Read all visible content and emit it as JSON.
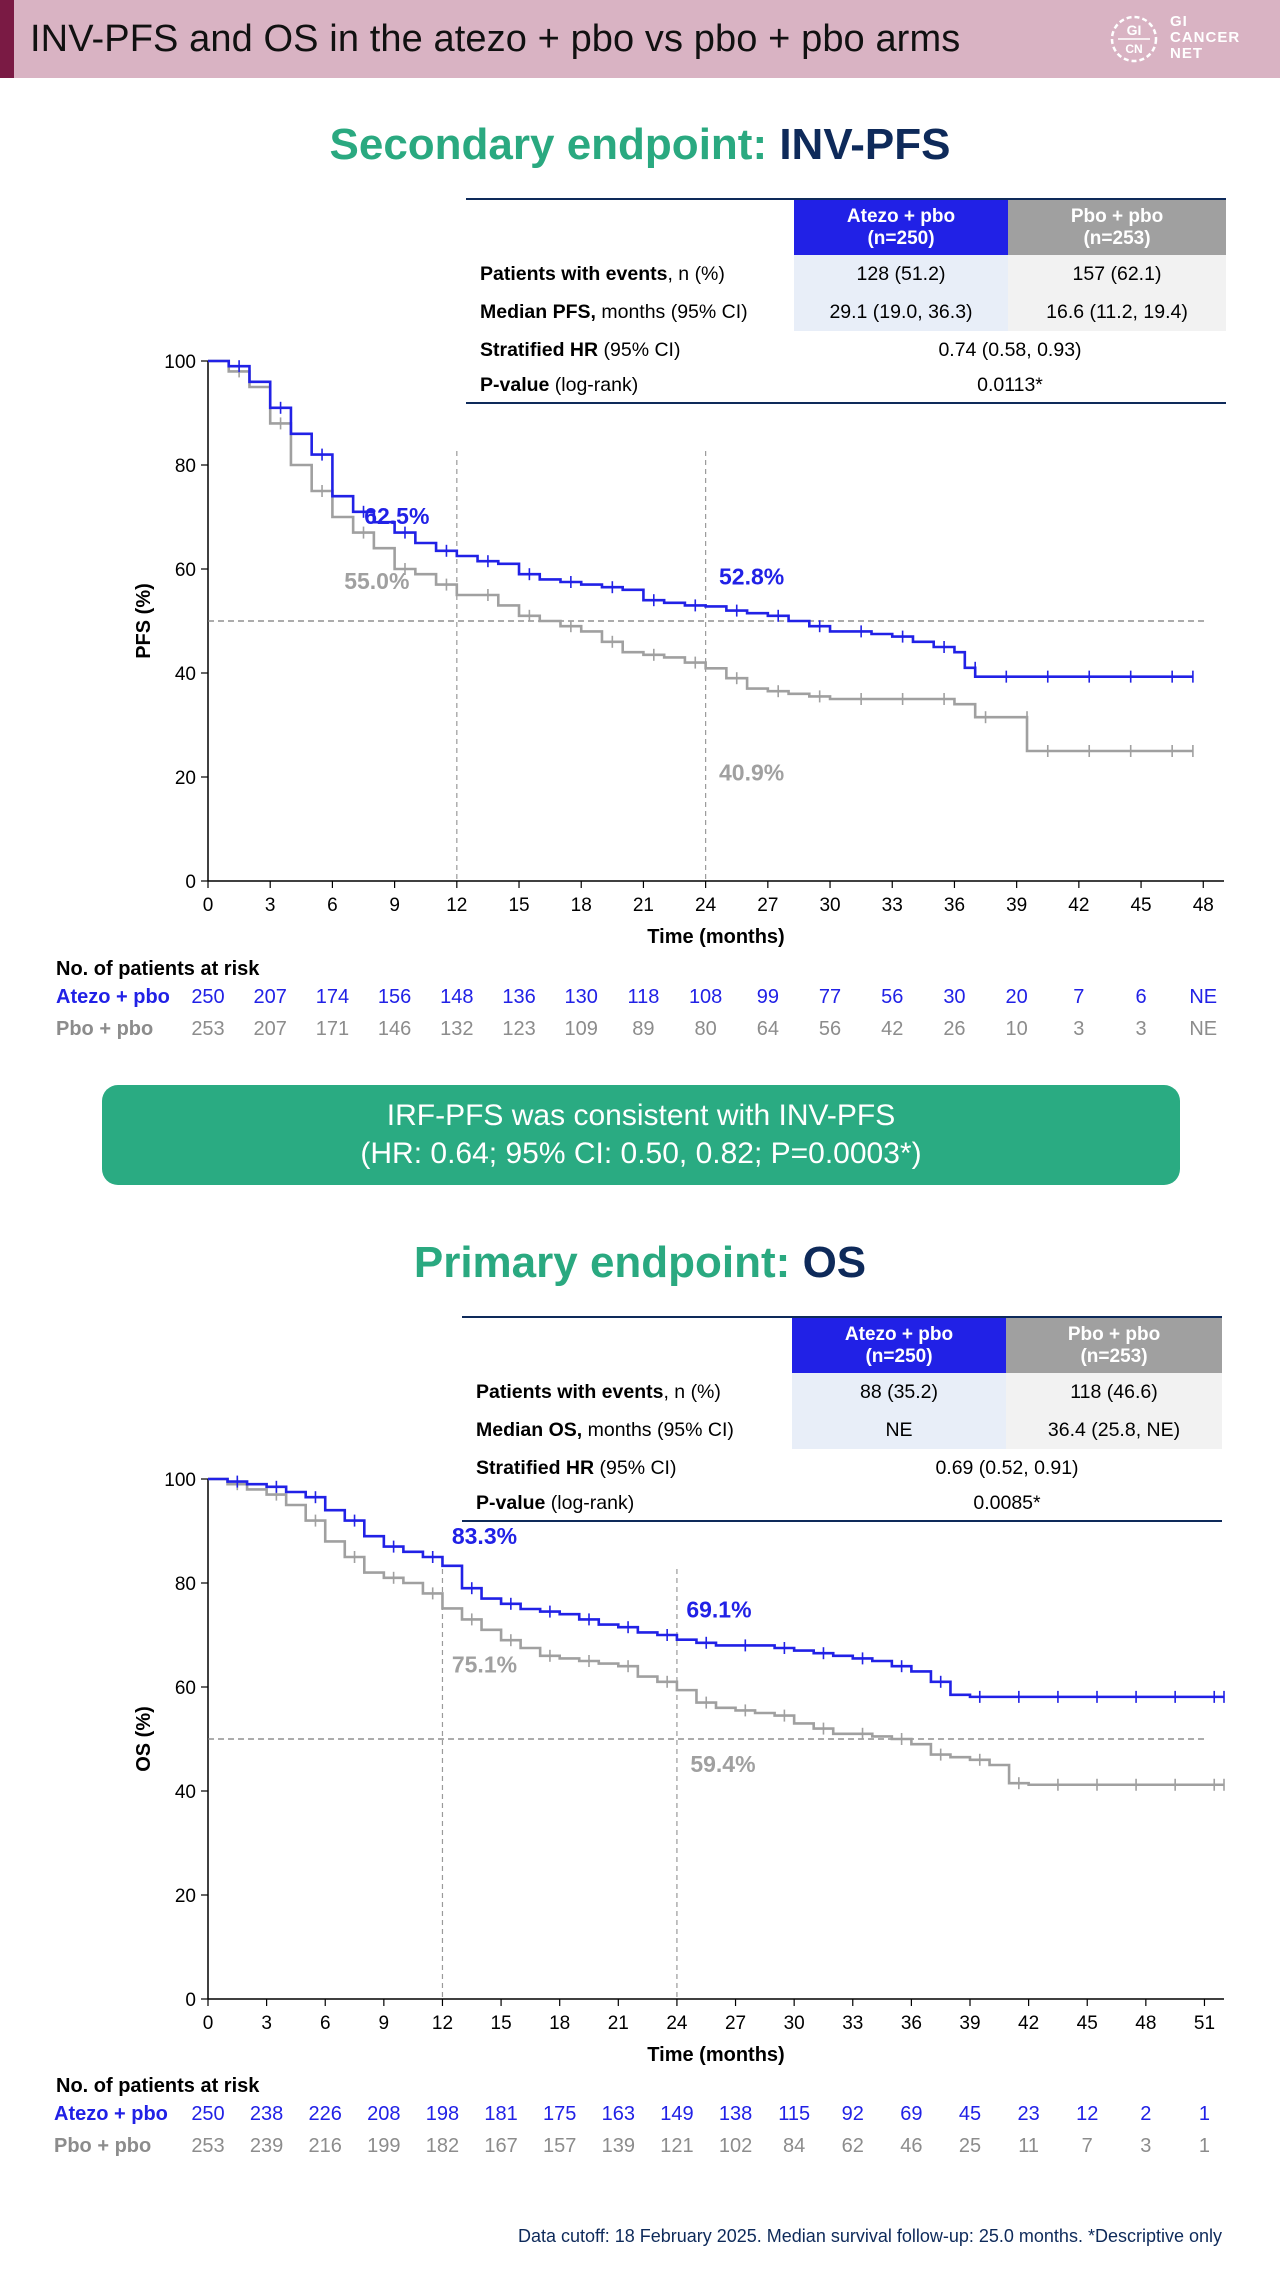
{
  "header": {
    "title": "INV-PFS and OS in the atezo + pbo vs pbo + pbo arms",
    "logo_text": [
      "GI",
      "CANCER",
      "NET"
    ],
    "logo_mark": "GI CN"
  },
  "pfs": {
    "title_prefix": "Secondary endpoint: ",
    "title_suffix": "INV-PFS",
    "table": {
      "col_a": [
        "Atezo + pbo",
        "(n=250)"
      ],
      "col_b": [
        "Pbo + pbo",
        "(n=253)"
      ],
      "events_label_bold": "Patients with events",
      "events_label_rest": ", n (%)",
      "events_a": "128 (51.2)",
      "events_b": "157 (62.1)",
      "median_label_bold": "Median PFS,",
      "median_label_rest": " months (95% CI)",
      "median_a": "29.1 (19.0, 36.3)",
      "median_b": "16.6 (11.2, 19.4)",
      "hr_label_bold": "Stratified HR",
      "hr_label_rest": " (95% CI)",
      "hr_value": "0.74 (0.58, 0.93)",
      "p_label_bold": "P-value",
      "p_label_rest": " (log-rank)",
      "p_value": "0.0113*"
    },
    "risk": {
      "title": "No. of patients at risk",
      "atezo_label": "Atezo + pbo",
      "pbo_label": "Pbo + pbo",
      "atezo": [
        "250",
        "207",
        "174",
        "156",
        "148",
        "136",
        "130",
        "118",
        "108",
        "99",
        "77",
        "56",
        "30",
        "20",
        "7",
        "6",
        "NE"
      ],
      "pbo": [
        "253",
        "207",
        "171",
        "146",
        "132",
        "123",
        "109",
        "89",
        "80",
        "64",
        "56",
        "42",
        "26",
        "10",
        "3",
        "3",
        "NE"
      ]
    }
  },
  "callout": {
    "line1": "IRF-PFS was consistent with INV-PFS",
    "line2": "(HR: 0.64; 95% CI: 0.50, 0.82; P=0.0003*)"
  },
  "os": {
    "title_prefix": "Primary endpoint: ",
    "title_suffix": "OS",
    "table": {
      "col_a": [
        "Atezo + pbo",
        "(n=250)"
      ],
      "col_b": [
        "Pbo + pbo",
        "(n=253)"
      ],
      "events_label_bold": "Patients with events",
      "events_label_rest": ", n (%)",
      "events_a": "88 (35.2)",
      "events_b": "118 (46.6)",
      "median_label_bold": "Median OS,",
      "median_label_rest": " months (95% CI)",
      "median_a": "NE",
      "median_b": "36.4 (25.8, NE)",
      "hr_label_bold": "Stratified HR",
      "hr_label_rest": " (95% CI)",
      "hr_value": "0.69 (0.52, 0.91)",
      "p_label_bold": "P-value",
      "p_label_rest": " (log-rank)",
      "p_value": "0.0085*"
    },
    "risk": {
      "title": "No. of patients at risk",
      "atezo_label": "Atezo + pbo",
      "pbo_label": "Pbo + pbo",
      "atezo": [
        "250",
        "238",
        "226",
        "208",
        "198",
        "181",
        "175",
        "163",
        "149",
        "138",
        "115",
        "92",
        "69",
        "45",
        "23",
        "12",
        "2",
        "1"
      ],
      "pbo": [
        "253",
        "239",
        "216",
        "199",
        "182",
        "167",
        "157",
        "139",
        "121",
        "102",
        "84",
        "62",
        "46",
        "25",
        "11",
        "7",
        "3",
        "1"
      ]
    }
  },
  "footer": "Data cutoff: 18 February 2025. Median survival follow-up: 25.0 months. *Descriptive only",
  "colors": {
    "atezo": "#2121e6",
    "pbo": "#a0a0a0",
    "green": "#2aa980",
    "navy": "#0e2a5a"
  },
  "chart_data": [
    {
      "type": "line",
      "title": "Secondary endpoint: INV-PFS",
      "xlabel": "Time (months)",
      "ylabel": "PFS (%)",
      "xticks": [
        0,
        3,
        6,
        9,
        12,
        15,
        18,
        21,
        24,
        27,
        30,
        33,
        36,
        39,
        42,
        45,
        48
      ],
      "yticks": [
        0,
        20,
        40,
        60,
        80,
        100
      ],
      "xlim": [
        0,
        49
      ],
      "ylim": [
        0,
        100
      ],
      "reference_y": 50,
      "reference_x": [
        12,
        24
      ],
      "series": [
        {
          "name": "Atezo + pbo",
          "color": "#2121e6",
          "x": [
            0,
            1,
            2,
            3,
            4,
            5,
            6,
            7,
            8,
            9,
            10,
            11,
            12,
            13,
            14,
            15,
            16,
            17,
            18,
            19,
            20,
            21,
            22,
            23,
            24,
            25,
            26,
            27,
            28,
            29,
            30,
            31,
            32,
            33,
            34,
            35,
            36,
            36.5,
            37,
            38,
            39,
            40,
            41,
            42,
            43,
            44,
            45,
            46,
            47.5
          ],
          "y": [
            100,
            99,
            96,
            91,
            86,
            82,
            74,
            71,
            69,
            67,
            65,
            63.5,
            62.5,
            61.5,
            61,
            59,
            58,
            57.5,
            57,
            56.5,
            56,
            54,
            53.5,
            53,
            52.8,
            52,
            51.5,
            51,
            50,
            49,
            48,
            48,
            47.5,
            47,
            46,
            45,
            44,
            41,
            39.3,
            39.3,
            39.3,
            39.3,
            39.3,
            39.3,
            39.3,
            39.3,
            39.3,
            39.3,
            39.3
          ],
          "annotations": [
            {
              "x": 12,
              "label": "62.5%"
            },
            {
              "x": 24,
              "label": "52.8%"
            }
          ]
        },
        {
          "name": "Pbo + pbo",
          "color": "#a0a0a0",
          "x": [
            0,
            1,
            2,
            3,
            4,
            5,
            6,
            7,
            8,
            9,
            10,
            11,
            12,
            13,
            14,
            15,
            16,
            17,
            18,
            19,
            20,
            21,
            22,
            23,
            24,
            25,
            26,
            27,
            28,
            29,
            30,
            31,
            32,
            33,
            34,
            35,
            36,
            37,
            38,
            39,
            39.5,
            40,
            41,
            42,
            43,
            44,
            45,
            46,
            47.5
          ],
          "y": [
            100,
            98,
            95,
            88,
            80,
            75,
            70,
            67,
            64,
            60,
            59,
            57,
            55,
            55,
            53,
            51,
            50,
            49,
            48,
            46,
            44,
            43.5,
            43,
            42,
            40.9,
            39,
            37,
            36.5,
            36,
            35.5,
            35,
            35,
            35,
            35,
            35,
            35,
            34,
            31.5,
            31.5,
            31.5,
            25,
            25,
            25,
            25,
            25,
            25,
            25,
            25,
            25
          ],
          "annotations": [
            {
              "x": 12,
              "label": "55.0%"
            },
            {
              "x": 24,
              "label": "40.9%"
            }
          ]
        }
      ]
    },
    {
      "type": "line",
      "title": "Primary endpoint: OS",
      "xlabel": "Time (months)",
      "ylabel": "OS (%)",
      "xticks": [
        0,
        3,
        6,
        9,
        12,
        15,
        18,
        21,
        24,
        27,
        30,
        33,
        36,
        39,
        42,
        45,
        48,
        51
      ],
      "yticks": [
        0,
        20,
        40,
        60,
        80,
        100
      ],
      "xlim": [
        0,
        52
      ],
      "ylim": [
        0,
        100
      ],
      "reference_y": 50,
      "reference_x": [
        12,
        24
      ],
      "series": [
        {
          "name": "Atezo + pbo",
          "color": "#2121e6",
          "x": [
            0,
            1,
            2,
            3,
            4,
            5,
            6,
            7,
            8,
            9,
            10,
            11,
            12,
            13,
            14,
            15,
            16,
            17,
            18,
            19,
            20,
            21,
            22,
            23,
            24,
            25,
            26,
            27,
            28,
            29,
            30,
            31,
            32,
            33,
            34,
            35,
            36,
            37,
            38,
            39,
            40,
            41,
            42,
            43,
            44,
            45,
            46,
            47,
            48,
            49,
            50,
            51,
            52
          ],
          "y": [
            100,
            99.5,
            99,
            98.5,
            97.5,
            96.5,
            94,
            92,
            89,
            87,
            86,
            85,
            83.3,
            79,
            77,
            76,
            75,
            74.5,
            74,
            73,
            72,
            71.5,
            70.5,
            70,
            69.1,
            68.5,
            68,
            68,
            68,
            67.5,
            67,
            66.5,
            66,
            65.5,
            65,
            64,
            63,
            61,
            58.5,
            58.1,
            58.1,
            58.1,
            58.1,
            58.1,
            58.1,
            58.1,
            58.1,
            58.1,
            58.1,
            58.1,
            58.1,
            58.1,
            58.1
          ],
          "annotations": [
            {
              "x": 12,
              "label": "83.3%"
            },
            {
              "x": 24,
              "label": "69.1%"
            }
          ]
        },
        {
          "name": "Pbo + pbo",
          "color": "#a0a0a0",
          "x": [
            0,
            1,
            2,
            3,
            4,
            5,
            6,
            7,
            8,
            9,
            10,
            11,
            12,
            13,
            14,
            15,
            16,
            17,
            18,
            19,
            20,
            21,
            22,
            23,
            24,
            25,
            26,
            27,
            28,
            29,
            30,
            31,
            32,
            33,
            34,
            35,
            36,
            37,
            38,
            39,
            40,
            41,
            42,
            43,
            44,
            45,
            46,
            47,
            48,
            49,
            50,
            51,
            52
          ],
          "y": [
            100,
            99,
            98,
            97,
            95,
            92,
            88,
            85,
            82,
            81,
            80,
            78,
            75.1,
            73,
            71,
            69,
            67.5,
            66,
            65.5,
            65,
            64.5,
            64,
            62,
            61,
            59.4,
            57,
            56,
            55.5,
            55,
            54.5,
            53,
            52,
            51,
            51,
            50.5,
            50,
            49,
            47,
            46.5,
            46,
            45,
            41.5,
            41.2,
            41.2,
            41.2,
            41.2,
            41.2,
            41.2,
            41.2,
            41.2,
            41.2,
            41.2,
            41.2
          ],
          "annotations": [
            {
              "x": 12,
              "label": "75.1%"
            },
            {
              "x": 24,
              "label": "59.4%"
            }
          ]
        }
      ]
    }
  ]
}
